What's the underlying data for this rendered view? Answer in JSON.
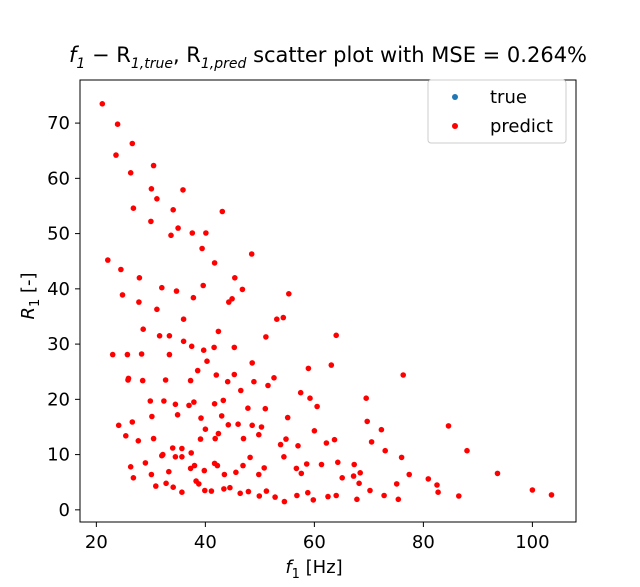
{
  "chart_data": {
    "type": "scatter",
    "title_prefix": "f",
    "title_sub1": "1",
    "title_mid": " − R",
    "title_sub2": "1,true",
    "title_sep": ", R",
    "title_sub3": "1,pred",
    "title_suffix": " scatter plot with MSE = 0.264%",
    "xlabel_main": "f",
    "xlabel_sub": "1",
    "xlabel_unit": " [Hz]",
    "ylabel_main": "R",
    "ylabel_sub": "1",
    "ylabel_unit": " [-]",
    "xlim": [
      17,
      108
    ],
    "ylim": [
      -2.2,
      77.8
    ],
    "xticks": [
      20,
      40,
      60,
      80,
      100
    ],
    "yticks": [
      0,
      10,
      20,
      30,
      40,
      50,
      60,
      70
    ],
    "legend_position": "top-right",
    "colors": {
      "true": "#1f77b4",
      "predict": "#ff0000"
    },
    "series": [
      {
        "name": "true",
        "color": "#1f77b4",
        "points": []
      },
      {
        "name": "predict",
        "color": "#ff0000",
        "points": [
          [
            21.1,
            73.5
          ],
          [
            23.9,
            69.8
          ],
          [
            23.6,
            64.2
          ],
          [
            26.6,
            66.3
          ],
          [
            26.3,
            61.0
          ],
          [
            26.8,
            54.6
          ],
          [
            30.5,
            62.3
          ],
          [
            30.1,
            58.1
          ],
          [
            31.1,
            56.3
          ],
          [
            30.0,
            52.2
          ],
          [
            34.1,
            54.3
          ],
          [
            35.9,
            57.9
          ],
          [
            33.7,
            49.7
          ],
          [
            35.0,
            51.0
          ],
          [
            37.6,
            50.1
          ],
          [
            40.1,
            50.1
          ],
          [
            43.1,
            54.0
          ],
          [
            39.4,
            47.3
          ],
          [
            41.7,
            44.7
          ],
          [
            48.5,
            46.3
          ],
          [
            22.1,
            45.2
          ],
          [
            24.5,
            43.5
          ],
          [
            24.8,
            38.9
          ],
          [
            27.9,
            42.0
          ],
          [
            27.8,
            37.6
          ],
          [
            32.0,
            40.2
          ],
          [
            31.1,
            36.3
          ],
          [
            34.7,
            39.6
          ],
          [
            36.0,
            34.5
          ],
          [
            37.8,
            38.4
          ],
          [
            39.6,
            40.6
          ],
          [
            44.3,
            37.6
          ],
          [
            44.9,
            38.2
          ],
          [
            45.4,
            42.0
          ],
          [
            46.8,
            39.9
          ],
          [
            53.1,
            34.5
          ],
          [
            54.3,
            34.8
          ],
          [
            55.3,
            39.1
          ],
          [
            28.6,
            32.7
          ],
          [
            31.6,
            31.5
          ],
          [
            33.4,
            31.5
          ],
          [
            36.0,
            30.5
          ],
          [
            37.5,
            29.6
          ],
          [
            39.7,
            28.9
          ],
          [
            40.3,
            26.9
          ],
          [
            41.6,
            29.4
          ],
          [
            42.4,
            32.3
          ],
          [
            45.3,
            29.4
          ],
          [
            48.6,
            26.6
          ],
          [
            51.1,
            31.3
          ],
          [
            23.0,
            28.1
          ],
          [
            25.7,
            28.1
          ],
          [
            28.3,
            28.2
          ],
          [
            33.4,
            28.1
          ],
          [
            25.9,
            23.8
          ],
          [
            25.8,
            23.5
          ],
          [
            28.5,
            23.4
          ],
          [
            32.7,
            23.5
          ],
          [
            37.3,
            23.4
          ],
          [
            38.6,
            25.2
          ],
          [
            42.0,
            24.4
          ],
          [
            44.1,
            23.2
          ],
          [
            45.3,
            24.5
          ],
          [
            48.9,
            23.2
          ],
          [
            51.5,
            22.5
          ],
          [
            52.6,
            23.9
          ],
          [
            57.5,
            21.2
          ],
          [
            59.2,
            20.2
          ],
          [
            60.5,
            18.7
          ],
          [
            63.1,
            26.2
          ],
          [
            58.9,
            25.6
          ],
          [
            64.0,
            31.6
          ],
          [
            69.5,
            20.2
          ],
          [
            76.3,
            24.4
          ],
          [
            24.1,
            15.3
          ],
          [
            26.6,
            15.9
          ],
          [
            29.9,
            19.7
          ],
          [
            30.2,
            16.9
          ],
          [
            32.4,
            19.7
          ],
          [
            34.5,
            19.1
          ],
          [
            34.9,
            17.2
          ],
          [
            37.0,
            18.9
          ],
          [
            37.9,
            19.5
          ],
          [
            39.2,
            16.6
          ],
          [
            41.7,
            19.2
          ],
          [
            43.3,
            19.8
          ],
          [
            43.0,
            17.0
          ],
          [
            46.5,
            21.6
          ],
          [
            47.8,
            18.4
          ],
          [
            51.0,
            18.3
          ],
          [
            55.1,
            16.7
          ],
          [
            25.4,
            13.4
          ],
          [
            27.7,
            12.5
          ],
          [
            30.5,
            12.9
          ],
          [
            32.2,
            10.0
          ],
          [
            34.0,
            11.2
          ],
          [
            34.5,
            9.6
          ],
          [
            35.7,
            11.1
          ],
          [
            37.4,
            10.3
          ],
          [
            39.1,
            12.8
          ],
          [
            40.0,
            14.6
          ],
          [
            41.8,
            12.9
          ],
          [
            42.4,
            13.8
          ],
          [
            44.2,
            15.4
          ],
          [
            46.0,
            15.5
          ],
          [
            47.0,
            12.9
          ],
          [
            48.6,
            15.3
          ],
          [
            50.3,
            15.0
          ],
          [
            49.8,
            13.6
          ],
          [
            53.8,
            11.8
          ],
          [
            54.8,
            12.8
          ],
          [
            57.0,
            11.6
          ],
          [
            60.0,
            14.3
          ],
          [
            62.2,
            12.1
          ],
          [
            63.7,
            12.7
          ],
          [
            69.7,
            16.0
          ],
          [
            70.5,
            12.3
          ],
          [
            72.3,
            14.5
          ],
          [
            76.0,
            9.5
          ],
          [
            73.0,
            10.7
          ],
          [
            84.6,
            15.2
          ],
          [
            88.0,
            10.7
          ],
          [
            26.3,
            7.8
          ],
          [
            29.0,
            8.5
          ],
          [
            30.1,
            6.4
          ],
          [
            32.0,
            9.8
          ],
          [
            33.3,
            6.9
          ],
          [
            35.7,
            9.6
          ],
          [
            37.3,
            7.5
          ],
          [
            38.0,
            8.0
          ],
          [
            38.8,
            4.7
          ],
          [
            39.8,
            7.1
          ],
          [
            41.7,
            8.4
          ],
          [
            42.2,
            8.0
          ],
          [
            43.5,
            6.4
          ],
          [
            45.6,
            6.8
          ],
          [
            46.9,
            8.0
          ],
          [
            48.2,
            9.5
          ],
          [
            49.8,
            6.4
          ],
          [
            50.8,
            7.6
          ],
          [
            54.4,
            9.6
          ],
          [
            56.7,
            7.5
          ],
          [
            57.6,
            6.6
          ],
          [
            58.6,
            8.3
          ],
          [
            61.3,
            8.2
          ],
          [
            64.3,
            8.6
          ],
          [
            65.1,
            5.8
          ],
          [
            67.3,
            8.2
          ],
          [
            68.4,
            6.7
          ],
          [
            67.2,
            6.1
          ],
          [
            68.2,
            4.8
          ],
          [
            75.1,
            4.7
          ],
          [
            77.4,
            6.4
          ],
          [
            80.9,
            5.6
          ],
          [
            82.7,
            3.2
          ],
          [
            26.8,
            5.8
          ],
          [
            30.9,
            4.3
          ],
          [
            32.8,
            4.8
          ],
          [
            34.1,
            4.1
          ],
          [
            35.7,
            3.2
          ],
          [
            38.3,
            5.2
          ],
          [
            39.9,
            3.5
          ],
          [
            41.1,
            3.4
          ],
          [
            43.4,
            3.8
          ],
          [
            44.5,
            4.0
          ],
          [
            46.4,
            3.0
          ],
          [
            47.9,
            3.3
          ],
          [
            49.9,
            2.5
          ],
          [
            51.2,
            3.4
          ],
          [
            52.8,
            2.3
          ],
          [
            54.5,
            1.5
          ],
          [
            56.8,
            2.6
          ],
          [
            58.8,
            3.1
          ],
          [
            59.8,
            1.8
          ],
          [
            62.5,
            2.4
          ],
          [
            64.0,
            2.6
          ],
          [
            67.8,
            1.9
          ],
          [
            70.2,
            3.5
          ],
          [
            72.8,
            2.6
          ],
          [
            75.4,
            1.9
          ],
          [
            82.5,
            4.5
          ],
          [
            86.5,
            2.5
          ],
          [
            93.6,
            6.6
          ],
          [
            100.0,
            3.6
          ],
          [
            103.5,
            2.7
          ]
        ]
      }
    ],
    "legend": {
      "items": [
        "true",
        "predict"
      ]
    }
  }
}
